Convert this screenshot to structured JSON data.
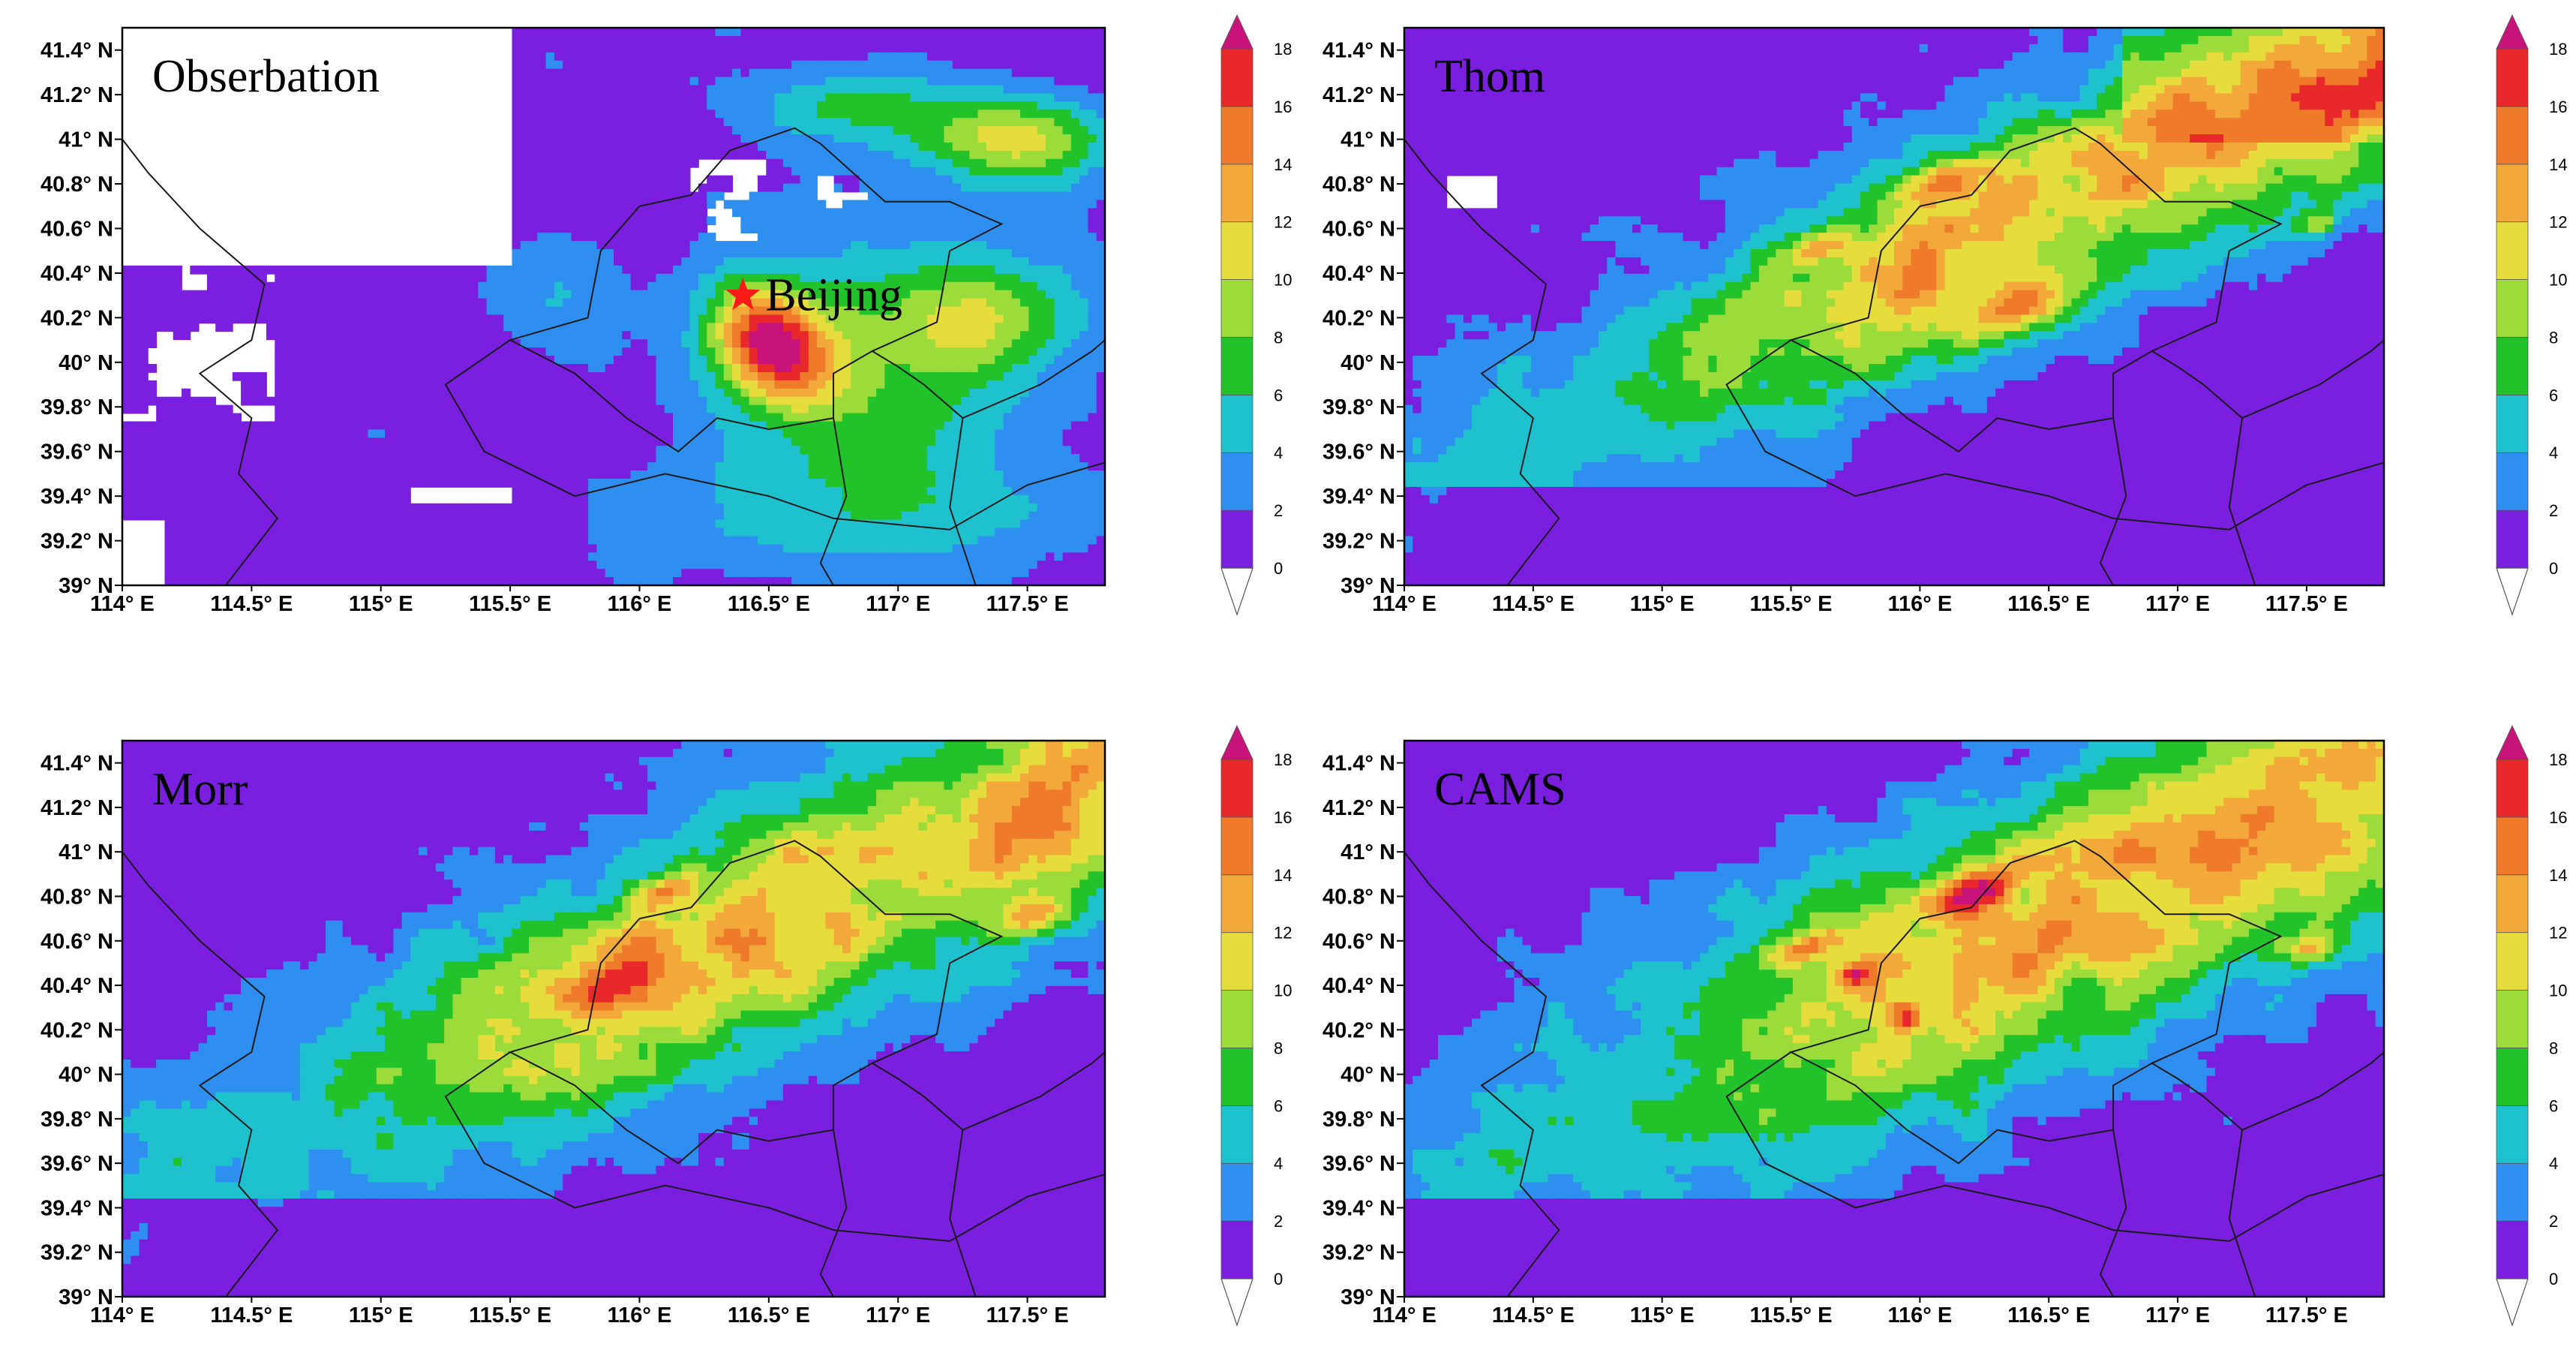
{
  "figure": {
    "panels": [
      {
        "title": "Obserbation",
        "city_label": "Beijing",
        "kind": "obs"
      },
      {
        "title": "Thom",
        "kind": "model",
        "variant": 0
      },
      {
        "title": "Morr",
        "kind": "model",
        "variant": 1
      },
      {
        "title": "CAMS",
        "kind": "model",
        "variant": 2
      }
    ],
    "lon_ticks": [
      "114° E",
      "114.5° E",
      "115° E",
      "115.5° E",
      "116° E",
      "116.5° E",
      "117° E",
      "117.5° E"
    ],
    "lat_ticks": [
      "39° N",
      "39.2° N",
      "39.4° N",
      "39.6° N",
      "39.8° N",
      "40° N",
      "40.2° N",
      "40.4° N",
      "40.6° N",
      "40.8° N",
      "41° N",
      "41.2° N",
      "41.4° N"
    ],
    "lon_range": [
      114.0,
      117.8
    ],
    "lat_range": [
      39.0,
      41.5
    ],
    "city": {
      "lon": 116.4,
      "lat": 40.3
    },
    "colorbar": {
      "levels": [
        0,
        2,
        4,
        6,
        8,
        10,
        12,
        14,
        16,
        18
      ],
      "tick_labels": [
        "0",
        "2",
        "4",
        "6",
        "8",
        "10",
        "12",
        "14",
        "16",
        "18"
      ],
      "colors": [
        "#ffffff",
        "#7a1fe0",
        "#2f8ff0",
        "#1ec2cf",
        "#22c32a",
        "#9cdc3a",
        "#e6dc3c",
        "#f2a93a",
        "#ee7a2a",
        "#e8282a",
        "#c8147a"
      ]
    }
  }
}
